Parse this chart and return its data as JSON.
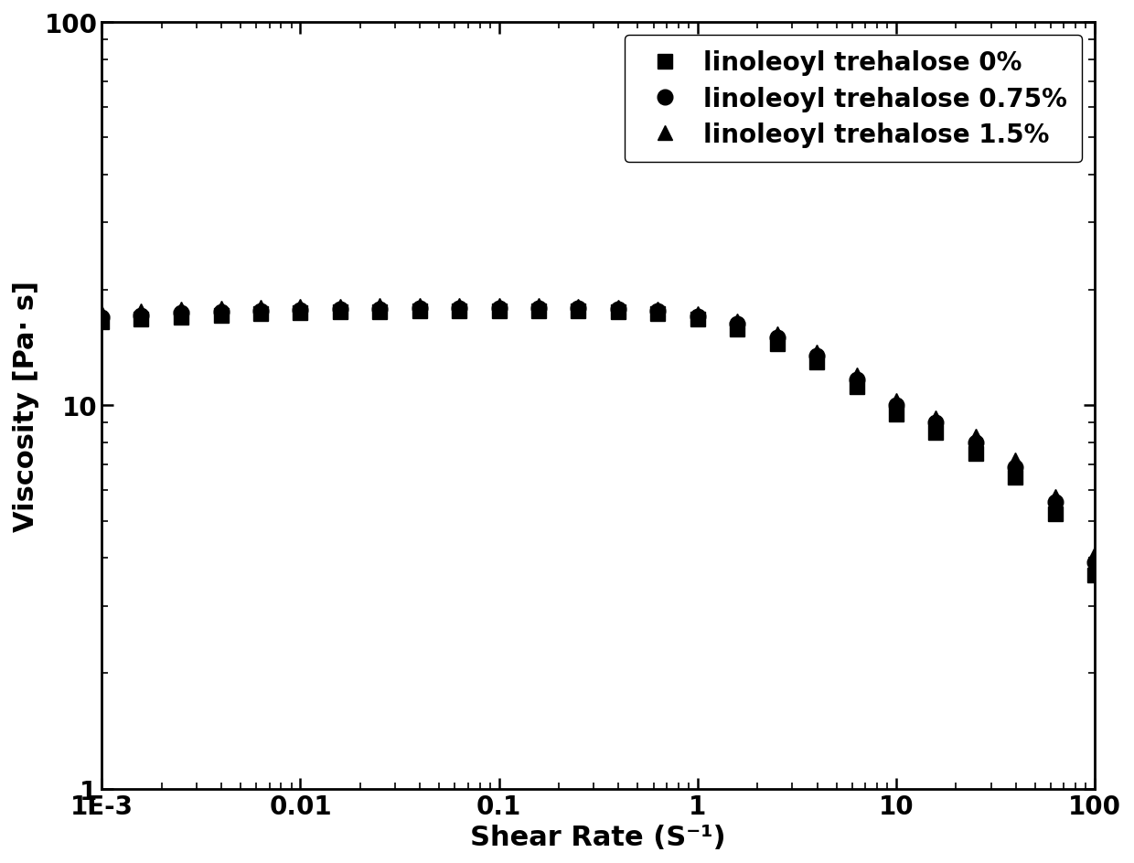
{
  "title": "",
  "xlabel": "Shear Rate (S⁻¹)",
  "ylabel": "Viscosity [Pa· s]",
  "xlim": [
    0.001,
    100
  ],
  "ylim": [
    1,
    100
  ],
  "series": [
    {
      "label": "linoleoyl trehalose 0%",
      "marker": "s",
      "color": "#000000",
      "x": [
        0.001,
        0.00158,
        0.00251,
        0.00398,
        0.00631,
        0.01,
        0.01585,
        0.02512,
        0.03981,
        0.0631,
        0.1,
        0.1585,
        0.2512,
        0.3981,
        0.631,
        1.0,
        1.585,
        2.512,
        3.981,
        6.31,
        10.0,
        15.85,
        25.12,
        39.81,
        63.1,
        100.0
      ],
      "y": [
        16.5,
        16.8,
        17.0,
        17.2,
        17.3,
        17.4,
        17.5,
        17.5,
        17.6,
        17.6,
        17.6,
        17.6,
        17.6,
        17.5,
        17.3,
        16.8,
        15.8,
        14.5,
        13.0,
        11.2,
        9.5,
        8.5,
        7.5,
        6.5,
        5.2,
        3.6
      ]
    },
    {
      "label": "linoleoyl trehalose 0.75%",
      "marker": "o",
      "color": "#000000",
      "x": [
        0.001,
        0.00158,
        0.00251,
        0.00398,
        0.00631,
        0.01,
        0.01585,
        0.02512,
        0.03981,
        0.0631,
        0.1,
        0.1585,
        0.2512,
        0.3981,
        0.631,
        1.0,
        1.585,
        2.512,
        3.981,
        6.31,
        10.0,
        15.85,
        25.12,
        39.81,
        63.1,
        100.0
      ],
      "y": [
        17.0,
        17.2,
        17.4,
        17.5,
        17.6,
        17.7,
        17.8,
        17.8,
        17.9,
        17.9,
        17.9,
        17.9,
        17.9,
        17.8,
        17.6,
        17.1,
        16.3,
        15.0,
        13.5,
        11.7,
        10.0,
        9.0,
        8.0,
        6.9,
        5.6,
        3.9
      ]
    },
    {
      "label": "linoleoyl trehalose 1.5%",
      "marker": "^",
      "color": "#000000",
      "x": [
        0.001,
        0.00158,
        0.00251,
        0.00398,
        0.00631,
        0.01,
        0.01585,
        0.02512,
        0.03981,
        0.0631,
        0.1,
        0.1585,
        0.2512,
        0.3981,
        0.631,
        1.0,
        1.585,
        2.512,
        3.981,
        6.31,
        10.0,
        15.85,
        25.12,
        39.81,
        63.1,
        100.0
      ],
      "y": [
        17.4,
        17.6,
        17.8,
        17.9,
        18.0,
        18.1,
        18.1,
        18.2,
        18.2,
        18.2,
        18.2,
        18.2,
        18.1,
        18.0,
        17.8,
        17.3,
        16.6,
        15.4,
        13.8,
        12.0,
        10.3,
        9.3,
        8.3,
        7.2,
        5.8,
        4.1
      ]
    }
  ],
  "legend_fontsize": 20,
  "axis_label_fontsize": 22,
  "tick_fontsize": 20,
  "marker_size": 12,
  "background_color": "#ffffff",
  "spine_linewidth": 2.0
}
